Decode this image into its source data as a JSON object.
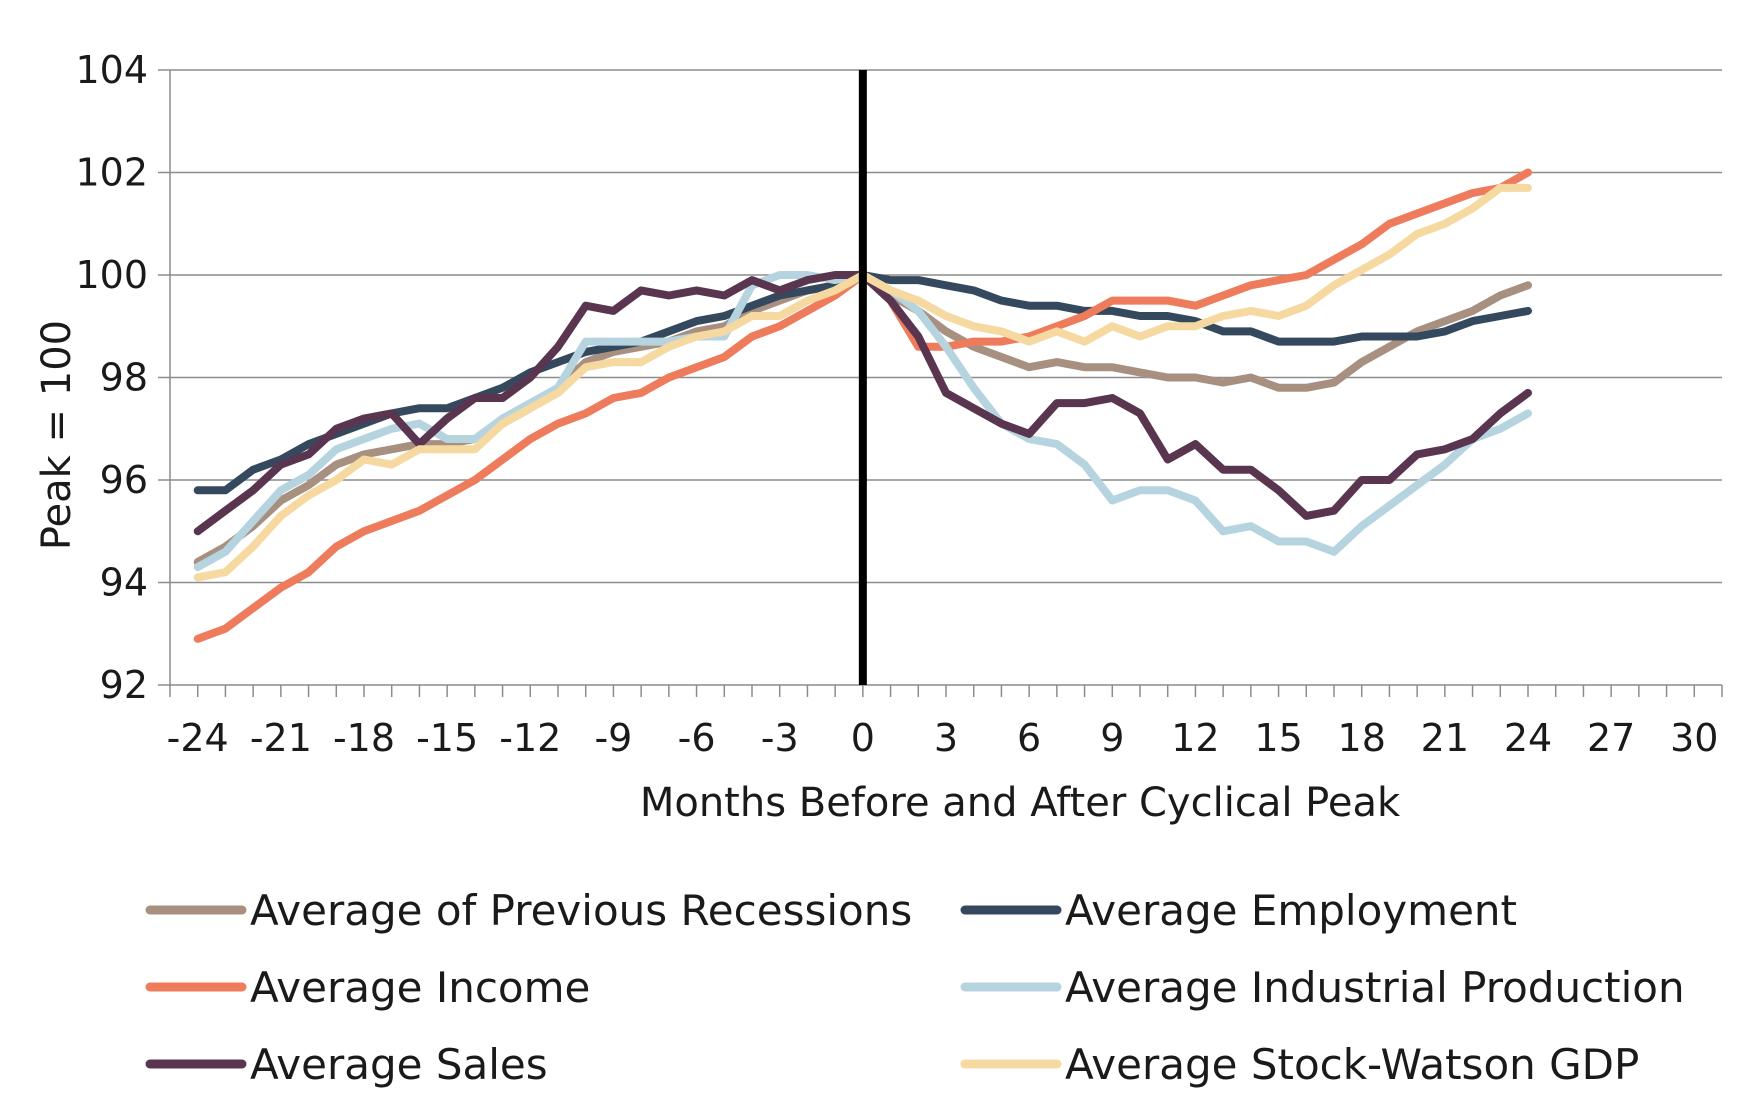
{
  "chart_data": {
    "type": "line",
    "title": "",
    "xlabel": "Months Before and After Cyclical Peak",
    "ylabel": "Peak = 100",
    "xlim": [
      -25,
      31
    ],
    "ylim": [
      92,
      104
    ],
    "x_ticks": [
      -24,
      -21,
      -18,
      -15,
      -12,
      -9,
      -6,
      -3,
      0,
      3,
      6,
      9,
      12,
      15,
      18,
      21,
      24,
      27,
      30
    ],
    "y_ticks": [
      92,
      94,
      96,
      98,
      100,
      102,
      104
    ],
    "grid": true,
    "peak_marker_x": 0,
    "legend_position": "bottom",
    "series": [
      {
        "name": "Average of Previous Recessions",
        "color": "#a89080",
        "points": [
          [
            -24,
            94.4
          ],
          [
            -23,
            94.7
          ],
          [
            -22,
            95.1
          ],
          [
            -21,
            95.6
          ],
          [
            -20,
            95.9
          ],
          [
            -19,
            96.3
          ],
          [
            -18,
            96.5
          ],
          [
            -17,
            96.6
          ],
          [
            -16,
            96.7
          ],
          [
            -15,
            96.7
          ],
          [
            -14,
            96.8
          ],
          [
            -13,
            97.1
          ],
          [
            -12,
            97.4
          ],
          [
            -11,
            97.8
          ],
          [
            -10,
            98.3
          ],
          [
            -9,
            98.5
          ],
          [
            -8,
            98.6
          ],
          [
            -7,
            98.7
          ],
          [
            -6,
            98.9
          ],
          [
            -5,
            99.0
          ],
          [
            -4,
            99.3
          ],
          [
            -3,
            99.5
          ],
          [
            -2,
            99.7
          ],
          [
            -1,
            99.8
          ],
          [
            0,
            100.0
          ],
          [
            1,
            99.6
          ],
          [
            2,
            99.3
          ],
          [
            3,
            98.9
          ],
          [
            4,
            98.6
          ],
          [
            5,
            98.4
          ],
          [
            6,
            98.2
          ],
          [
            7,
            98.3
          ],
          [
            8,
            98.2
          ],
          [
            9,
            98.2
          ],
          [
            10,
            98.1
          ],
          [
            11,
            98.0
          ],
          [
            12,
            98.0
          ],
          [
            13,
            97.9
          ],
          [
            14,
            98.0
          ],
          [
            15,
            97.8
          ],
          [
            16,
            97.8
          ],
          [
            17,
            97.9
          ],
          [
            18,
            98.3
          ],
          [
            19,
            98.6
          ],
          [
            20,
            98.9
          ],
          [
            21,
            99.1
          ],
          [
            22,
            99.3
          ],
          [
            23,
            99.6
          ],
          [
            24,
            99.8
          ]
        ]
      },
      {
        "name": "Average Employment",
        "color": "#34495e",
        "points": [
          [
            -24,
            95.8
          ],
          [
            -23,
            95.8
          ],
          [
            -22,
            96.2
          ],
          [
            -21,
            96.4
          ],
          [
            -20,
            96.7
          ],
          [
            -19,
            96.9
          ],
          [
            -18,
            97.1
          ],
          [
            -17,
            97.3
          ],
          [
            -16,
            97.4
          ],
          [
            -15,
            97.4
          ],
          [
            -14,
            97.6
          ],
          [
            -13,
            97.8
          ],
          [
            -12,
            98.1
          ],
          [
            -11,
            98.3
          ],
          [
            -10,
            98.5
          ],
          [
            -9,
            98.6
          ],
          [
            -8,
            98.7
          ],
          [
            -7,
            98.9
          ],
          [
            -6,
            99.1
          ],
          [
            -5,
            99.2
          ],
          [
            -4,
            99.4
          ],
          [
            -3,
            99.6
          ],
          [
            -2,
            99.7
          ],
          [
            -1,
            99.8
          ],
          [
            0,
            100.0
          ],
          [
            1,
            99.9
          ],
          [
            2,
            99.9
          ],
          [
            3,
            99.8
          ],
          [
            4,
            99.7
          ],
          [
            5,
            99.5
          ],
          [
            6,
            99.4
          ],
          [
            7,
            99.4
          ],
          [
            8,
            99.3
          ],
          [
            9,
            99.3
          ],
          [
            10,
            99.2
          ],
          [
            11,
            99.2
          ],
          [
            12,
            99.1
          ],
          [
            13,
            98.9
          ],
          [
            14,
            98.9
          ],
          [
            15,
            98.7
          ],
          [
            16,
            98.7
          ],
          [
            17,
            98.7
          ],
          [
            18,
            98.8
          ],
          [
            19,
            98.8
          ],
          [
            20,
            98.8
          ],
          [
            21,
            98.9
          ],
          [
            22,
            99.1
          ],
          [
            23,
            99.2
          ],
          [
            24,
            99.3
          ]
        ]
      },
      {
        "name": "Average Income",
        "color": "#ee7b5b",
        "points": [
          [
            -24,
            92.9
          ],
          [
            -23,
            93.1
          ],
          [
            -22,
            93.5
          ],
          [
            -21,
            93.9
          ],
          [
            -20,
            94.2
          ],
          [
            -19,
            94.7
          ],
          [
            -18,
            95.0
          ],
          [
            -17,
            95.2
          ],
          [
            -16,
            95.4
          ],
          [
            -15,
            95.7
          ],
          [
            -14,
            96.0
          ],
          [
            -13,
            96.4
          ],
          [
            -12,
            96.8
          ],
          [
            -11,
            97.1
          ],
          [
            -10,
            97.3
          ],
          [
            -9,
            97.6
          ],
          [
            -8,
            97.7
          ],
          [
            -7,
            98.0
          ],
          [
            -6,
            98.2
          ],
          [
            -5,
            98.4
          ],
          [
            -4,
            98.8
          ],
          [
            -3,
            99.0
          ],
          [
            -2,
            99.3
          ],
          [
            -1,
            99.6
          ],
          [
            0,
            100.0
          ],
          [
            1,
            99.5
          ],
          [
            2,
            98.6
          ],
          [
            3,
            98.6
          ],
          [
            4,
            98.7
          ],
          [
            5,
            98.7
          ],
          [
            6,
            98.8
          ],
          [
            7,
            99.0
          ],
          [
            8,
            99.2
          ],
          [
            9,
            99.5
          ],
          [
            10,
            99.5
          ],
          [
            11,
            99.5
          ],
          [
            12,
            99.4
          ],
          [
            13,
            99.6
          ],
          [
            14,
            99.8
          ],
          [
            15,
            99.9
          ],
          [
            16,
            100.0
          ],
          [
            17,
            100.3
          ],
          [
            18,
            100.6
          ],
          [
            19,
            101.0
          ],
          [
            20,
            101.2
          ],
          [
            21,
            101.4
          ],
          [
            22,
            101.6
          ],
          [
            23,
            101.7
          ],
          [
            24,
            102.0
          ]
        ]
      },
      {
        "name": "Average Industrial Production",
        "color": "#b6d4e0",
        "points": [
          [
            -24,
            94.3
          ],
          [
            -23,
            94.6
          ],
          [
            -22,
            95.2
          ],
          [
            -21,
            95.8
          ],
          [
            -20,
            96.1
          ],
          [
            -19,
            96.6
          ],
          [
            -18,
            96.8
          ],
          [
            -17,
            97.0
          ],
          [
            -16,
            97.1
          ],
          [
            -15,
            96.8
          ],
          [
            -14,
            96.8
          ],
          [
            -13,
            97.2
          ],
          [
            -12,
            97.5
          ],
          [
            -11,
            97.8
          ],
          [
            -10,
            98.7
          ],
          [
            -9,
            98.7
          ],
          [
            -8,
            98.7
          ],
          [
            -7,
            98.7
          ],
          [
            -6,
            98.8
          ],
          [
            -5,
            98.8
          ],
          [
            -4,
            99.8
          ],
          [
            -3,
            100.0
          ],
          [
            -2,
            100.0
          ],
          [
            -1,
            99.9
          ],
          [
            0,
            100.0
          ],
          [
            1,
            99.7
          ],
          [
            2,
            99.3
          ],
          [
            3,
            98.6
          ],
          [
            4,
            97.8
          ],
          [
            5,
            97.1
          ],
          [
            6,
            96.8
          ],
          [
            7,
            96.7
          ],
          [
            8,
            96.3
          ],
          [
            9,
            95.6
          ],
          [
            10,
            95.8
          ],
          [
            11,
            95.8
          ],
          [
            12,
            95.6
          ],
          [
            13,
            95.0
          ],
          [
            14,
            95.1
          ],
          [
            15,
            94.8
          ],
          [
            16,
            94.8
          ],
          [
            17,
            94.6
          ],
          [
            18,
            95.1
          ],
          [
            19,
            95.5
          ],
          [
            20,
            95.9
          ],
          [
            21,
            96.3
          ],
          [
            22,
            96.8
          ],
          [
            23,
            97.0
          ],
          [
            24,
            97.3
          ]
        ]
      },
      {
        "name": "Average Sales",
        "color": "#5a3550",
        "points": [
          [
            -24,
            95.0
          ],
          [
            -23,
            95.4
          ],
          [
            -22,
            95.8
          ],
          [
            -21,
            96.3
          ],
          [
            -20,
            96.5
          ],
          [
            -19,
            97.0
          ],
          [
            -18,
            97.2
          ],
          [
            -17,
            97.3
          ],
          [
            -16,
            96.7
          ],
          [
            -15,
            97.2
          ],
          [
            -14,
            97.6
          ],
          [
            -13,
            97.6
          ],
          [
            -12,
            98.0
          ],
          [
            -11,
            98.6
          ],
          [
            -10,
            99.4
          ],
          [
            -9,
            99.3
          ],
          [
            -8,
            99.7
          ],
          [
            -7,
            99.6
          ],
          [
            -6,
            99.7
          ],
          [
            -5,
            99.6
          ],
          [
            -4,
            99.9
          ],
          [
            -3,
            99.7
          ],
          [
            -2,
            99.9
          ],
          [
            -1,
            100.0
          ],
          [
            0,
            100.0
          ],
          [
            1,
            99.5
          ],
          [
            2,
            98.8
          ],
          [
            3,
            97.7
          ],
          [
            4,
            97.4
          ],
          [
            5,
            97.1
          ],
          [
            6,
            96.9
          ],
          [
            7,
            97.5
          ],
          [
            8,
            97.5
          ],
          [
            9,
            97.6
          ],
          [
            10,
            97.3
          ],
          [
            11,
            96.4
          ],
          [
            12,
            96.7
          ],
          [
            13,
            96.2
          ],
          [
            14,
            96.2
          ],
          [
            15,
            95.8
          ],
          [
            16,
            95.3
          ],
          [
            17,
            95.4
          ],
          [
            18,
            96.0
          ],
          [
            19,
            96.0
          ],
          [
            20,
            96.5
          ],
          [
            21,
            96.6
          ],
          [
            22,
            96.8
          ],
          [
            23,
            97.3
          ],
          [
            24,
            97.7
          ]
        ]
      },
      {
        "name": "Average Stock-Watson GDP",
        "color": "#f5d9a0",
        "points": [
          [
            -24,
            94.1
          ],
          [
            -23,
            94.2
          ],
          [
            -22,
            94.7
          ],
          [
            -21,
            95.3
          ],
          [
            -20,
            95.7
          ],
          [
            -19,
            96.0
          ],
          [
            -18,
            96.4
          ],
          [
            -17,
            96.3
          ],
          [
            -16,
            96.6
          ],
          [
            -15,
            96.6
          ],
          [
            -14,
            96.6
          ],
          [
            -13,
            97.1
          ],
          [
            -12,
            97.4
          ],
          [
            -11,
            97.7
          ],
          [
            -10,
            98.2
          ],
          [
            -9,
            98.3
          ],
          [
            -8,
            98.3
          ],
          [
            -7,
            98.6
          ],
          [
            -6,
            98.8
          ],
          [
            -5,
            98.9
          ],
          [
            -4,
            99.2
          ],
          [
            -3,
            99.2
          ],
          [
            -2,
            99.5
          ],
          [
            -1,
            99.7
          ],
          [
            0,
            100.0
          ],
          [
            1,
            99.7
          ],
          [
            2,
            99.5
          ],
          [
            3,
            99.2
          ],
          [
            4,
            99.0
          ],
          [
            5,
            98.9
          ],
          [
            6,
            98.7
          ],
          [
            7,
            98.9
          ],
          [
            8,
            98.7
          ],
          [
            9,
            99.0
          ],
          [
            10,
            98.8
          ],
          [
            11,
            99.0
          ],
          [
            12,
            99.0
          ],
          [
            13,
            99.2
          ],
          [
            14,
            99.3
          ],
          [
            15,
            99.2
          ],
          [
            16,
            99.4
          ],
          [
            17,
            99.8
          ],
          [
            18,
            100.1
          ],
          [
            19,
            100.4
          ],
          [
            20,
            100.8
          ],
          [
            21,
            101.0
          ],
          [
            22,
            101.3
          ],
          [
            23,
            101.7
          ],
          [
            24,
            101.7
          ]
        ]
      }
    ]
  }
}
